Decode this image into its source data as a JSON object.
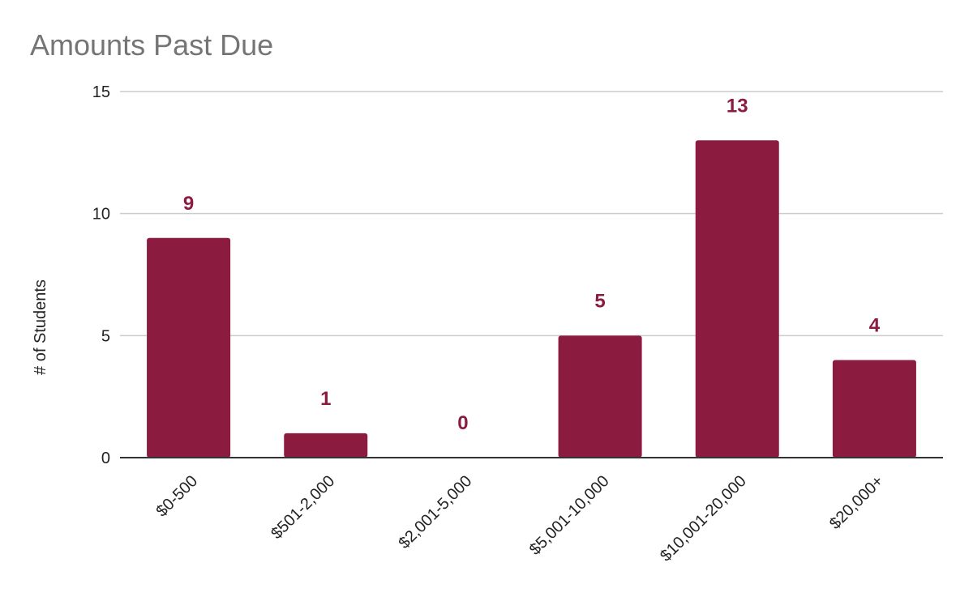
{
  "chart_data": {
    "type": "bar",
    "title": "Amounts Past Due",
    "xlabel": "",
    "ylabel": "# of Students",
    "categories": [
      "$0-500",
      "$501-2,000",
      "$2,001-5,000",
      "$5,001-10,000",
      "$10,001-20,000",
      "$20,000+"
    ],
    "values": [
      9,
      1,
      0,
      5,
      13,
      4
    ],
    "value_labels": [
      "9",
      "1",
      "0",
      "5",
      "13",
      "4"
    ],
    "ylim": [
      0,
      15
    ],
    "yticks": [
      0,
      5,
      10,
      15
    ],
    "ytick_labels": [
      "0",
      "5",
      "10",
      "15"
    ],
    "grid": true,
    "legend": "none",
    "colors": {
      "bar": "#8b1c40",
      "data_label": "#8b1c40",
      "title": "#757575",
      "gridline": "#cccccc",
      "axis": "#333333"
    }
  }
}
